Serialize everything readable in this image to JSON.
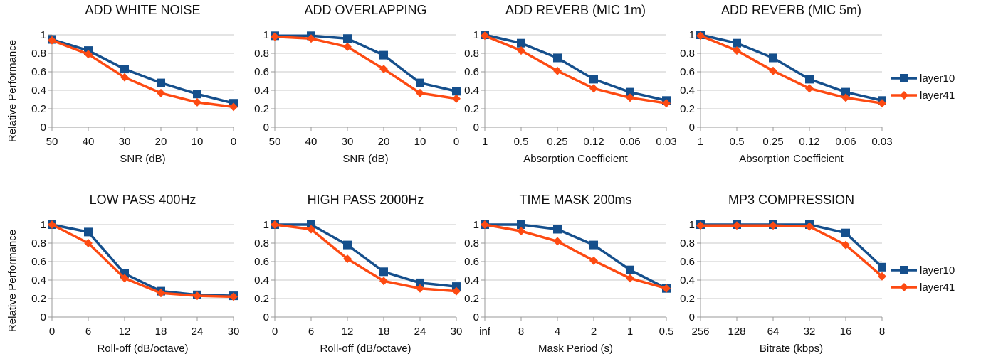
{
  "y_axis_label": "Relative Performance",
  "colors": {
    "layer10": "#154f8c",
    "layer41": "#fd4a12",
    "grid": "#c8c8c8",
    "axis": "#999999"
  },
  "legend": [
    "layer10",
    "layer41"
  ],
  "chart_data": [
    {
      "type": "line",
      "title": "ADD WHITE NOISE",
      "xlabel": "SNR (dB)",
      "ylabel": "Relative Performance",
      "categories": [
        "50",
        "40",
        "30",
        "20",
        "10",
        "0"
      ],
      "ylim": [
        0,
        1
      ],
      "yticks": [
        "0",
        "0.2",
        "0.4",
        "0.6",
        "0.8",
        "1"
      ],
      "grid": true,
      "legend_position": "right",
      "series": [
        {
          "name": "layer10",
          "values": [
            0.95,
            0.83,
            0.63,
            0.48,
            0.36,
            0.26
          ]
        },
        {
          "name": "layer41",
          "values": [
            0.94,
            0.79,
            0.54,
            0.37,
            0.27,
            0.22
          ]
        }
      ]
    },
    {
      "type": "line",
      "title": "ADD OVERLAPPING",
      "xlabel": "SNR (dB)",
      "ylabel": "",
      "categories": [
        "50",
        "40",
        "30",
        "20",
        "10",
        "0"
      ],
      "ylim": [
        0,
        1
      ],
      "yticks": [
        "0",
        "0.2",
        "0.4",
        "0.6",
        "0.8",
        "1"
      ],
      "grid": true,
      "legend_position": "right",
      "series": [
        {
          "name": "layer10",
          "values": [
            0.99,
            0.99,
            0.96,
            0.78,
            0.48,
            0.39
          ]
        },
        {
          "name": "layer41",
          "values": [
            0.98,
            0.96,
            0.87,
            0.63,
            0.37,
            0.31
          ]
        }
      ]
    },
    {
      "type": "line",
      "title": "ADD REVERB (MIC 1m)",
      "xlabel": "Absorption Coefficient",
      "ylabel": "",
      "categories": [
        "1",
        "0.5",
        "0.25",
        "0.12",
        "0.06",
        "0.03"
      ],
      "ylim": [
        0,
        1
      ],
      "yticks": [
        "0",
        "0.2",
        "0.4",
        "0.6",
        "0.8",
        "1"
      ],
      "grid": true,
      "legend_position": "right",
      "series": [
        {
          "name": "layer10",
          "values": [
            1.0,
            0.91,
            0.75,
            0.52,
            0.38,
            0.29
          ]
        },
        {
          "name": "layer41",
          "values": [
            0.99,
            0.83,
            0.61,
            0.42,
            0.32,
            0.26
          ]
        }
      ]
    },
    {
      "type": "line",
      "title": "ADD REVERB (MIC 5m)",
      "xlabel": "Absorption Coefficient",
      "ylabel": "",
      "categories": [
        "1",
        "0.5",
        "0.25",
        "0.12",
        "0.06",
        "0.03"
      ],
      "ylim": [
        0,
        1
      ],
      "yticks": [
        "0",
        "0.2",
        "0.4",
        "0.6",
        "0.8",
        "1"
      ],
      "grid": true,
      "legend_position": "right",
      "series": [
        {
          "name": "layer10",
          "values": [
            1.0,
            0.91,
            0.75,
            0.52,
            0.38,
            0.29
          ]
        },
        {
          "name": "layer41",
          "values": [
            0.99,
            0.83,
            0.61,
            0.42,
            0.32,
            0.26
          ]
        }
      ]
    },
    {
      "type": "line",
      "title": "LOW PASS 400Hz",
      "xlabel": "Roll-off (dB/octave)",
      "ylabel": "Relative Performance",
      "categories": [
        "0",
        "6",
        "12",
        "18",
        "24",
        "30"
      ],
      "ylim": [
        0,
        1
      ],
      "yticks": [
        "0",
        "0.2",
        "0.4",
        "0.6",
        "0.8",
        "1"
      ],
      "grid": true,
      "legend_position": "right",
      "series": [
        {
          "name": "layer10",
          "values": [
            1.0,
            0.92,
            0.47,
            0.28,
            0.24,
            0.23
          ]
        },
        {
          "name": "layer41",
          "values": [
            1.0,
            0.8,
            0.42,
            0.26,
            0.23,
            0.22
          ]
        }
      ]
    },
    {
      "type": "line",
      "title": "HIGH PASS 2000Hz",
      "xlabel": "Roll-off (dB/octave)",
      "ylabel": "",
      "categories": [
        "0",
        "6",
        "12",
        "18",
        "24",
        "30"
      ],
      "ylim": [
        0,
        1
      ],
      "yticks": [
        "0",
        "0.2",
        "0.4",
        "0.6",
        "0.8",
        "1"
      ],
      "grid": true,
      "legend_position": "right",
      "series": [
        {
          "name": "layer10",
          "values": [
            1.0,
            1.0,
            0.78,
            0.49,
            0.37,
            0.33
          ]
        },
        {
          "name": "layer41",
          "values": [
            1.0,
            0.95,
            0.63,
            0.39,
            0.31,
            0.28
          ]
        }
      ]
    },
    {
      "type": "line",
      "title": "TIME MASK 200ms",
      "xlabel": "Mask Period (s)",
      "ylabel": "",
      "categories": [
        "inf",
        "8",
        "4",
        "2",
        "1",
        "0.5"
      ],
      "ylim": [
        0,
        1
      ],
      "yticks": [
        "0",
        "0.2",
        "0.4",
        "0.6",
        "0.8",
        "1"
      ],
      "grid": true,
      "legend_position": "right",
      "series": [
        {
          "name": "layer10",
          "values": [
            1.0,
            1.0,
            0.95,
            0.78,
            0.51,
            0.31
          ]
        },
        {
          "name": "layer41",
          "values": [
            1.0,
            0.93,
            0.82,
            0.61,
            0.42,
            0.31
          ]
        }
      ]
    },
    {
      "type": "line",
      "title": "MP3 COMPRESSION",
      "xlabel": "Bitrate (kbps)",
      "ylabel": "",
      "categories": [
        "256",
        "128",
        "64",
        "32",
        "16",
        "8"
      ],
      "ylim": [
        0,
        1
      ],
      "yticks": [
        "0",
        "0.2",
        "0.4",
        "0.6",
        "0.8",
        "1"
      ],
      "grid": true,
      "legend_position": "right",
      "series": [
        {
          "name": "layer10",
          "values": [
            1.0,
            1.0,
            1.0,
            1.0,
            0.91,
            0.54
          ]
        },
        {
          "name": "layer41",
          "values": [
            0.99,
            0.99,
            0.99,
            0.98,
            0.78,
            0.44
          ]
        }
      ]
    }
  ]
}
